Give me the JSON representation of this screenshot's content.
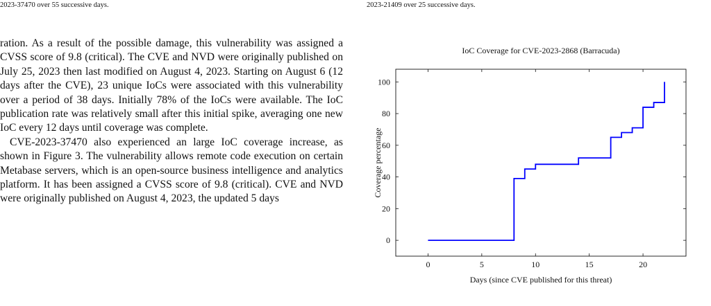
{
  "captions": {
    "left": "2023-37470 over 55 successive days.",
    "right": "2023-21409 over 25 successive days."
  },
  "body": {
    "paragraphs": [
      "ration. As a result of the possible damage, this vulnerability was assigned a CVSS score of 9.8 (critical). The CVE and NVD were originally published on July 25, 2023 then last modified on August 4, 2023. Starting on August 6 (12 days after the CVE), 23 unique IoCs were associated with this vulnerability over a period of 38 days. Initially 78% of the IoCs were available. The IoC publication rate was relatively small after this initial spike, averaging one new IoC every 12 days until coverage was complete.",
      "CVE-2023-37470 also experienced an large IoC coverage increase, as shown in Figure 3. The vulnerability allows remote code execution on certain Metabase servers, which is an open-source business intelligence and analytics platform. It has been assigned a CVSS score of 9.8 (critical). CVE and NVD were originally published on August 4, 2023, the updated 5 days"
    ]
  },
  "chart_data": {
    "type": "line",
    "title": "IoC Coverage for CVE-2023-2868 (Barracuda)",
    "xlabel": "Days (since CVE published for this threat)",
    "ylabel": "Coverage percentage",
    "xlim": [
      -3,
      24
    ],
    "ylim": [
      -10,
      108
    ],
    "xticks": [
      0,
      5,
      10,
      15,
      20
    ],
    "yticks": [
      0,
      20,
      40,
      60,
      80,
      100
    ],
    "step": "post",
    "color": "#0000ff",
    "grid": false,
    "series": [
      {
        "x": [
          0,
          8,
          9,
          10,
          14,
          17,
          18,
          19,
          20,
          21,
          22
        ],
        "values": [
          0,
          39,
          45,
          48,
          52,
          65,
          68,
          71,
          84,
          87,
          100
        ]
      }
    ]
  }
}
